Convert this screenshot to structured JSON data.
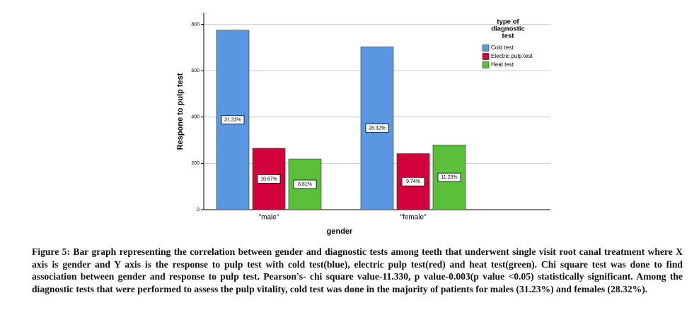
{
  "chart_data": {
    "type": "bar",
    "categories": [
      "\"male\"",
      "\"female\""
    ],
    "series": [
      {
        "name": "Cold test",
        "color": "#5a97e2",
        "values": [
          775,
          703
        ],
        "data_labels": [
          "31.23%",
          "28.32%"
        ]
      },
      {
        "name": "Electric pulp test",
        "color": "#d2023c",
        "values": [
          265,
          242
        ],
        "data_labels": [
          "10.67%",
          "9.74%"
        ]
      },
      {
        "name": "Heat test",
        "color": "#5cbf3b",
        "values": [
          219,
          279
        ],
        "data_labels": [
          "8.81%",
          "11.23%"
        ]
      }
    ],
    "ylim": [
      0,
      850
    ],
    "yticks": [
      0,
      200,
      400,
      600,
      800
    ],
    "grid": true,
    "xlabel": "gender",
    "ylabel": "Respone to pulp test",
    "legend_title": [
      "type of",
      "diagnostic",
      "test"
    ],
    "legend_position": "right"
  },
  "caption": "Figure 5: Bar graph representing the correlation between gender and diagnostic tests among teeth that underwent single visit root canal treatment where X axis is gender and Y axis is the response to pulp test with cold test(blue), electric pulp test(red) and heat test(green). Chi square test was done to find association between gender and response to pulp test. Pearson's- chi square value-11.330, p value-0.003(p value <0.05) statistically significant. Among the diagnostic tests that were performed to assess the pulp vitality, cold test was done in the majority of patients for males (31.23%) and females (28.32%)."
}
